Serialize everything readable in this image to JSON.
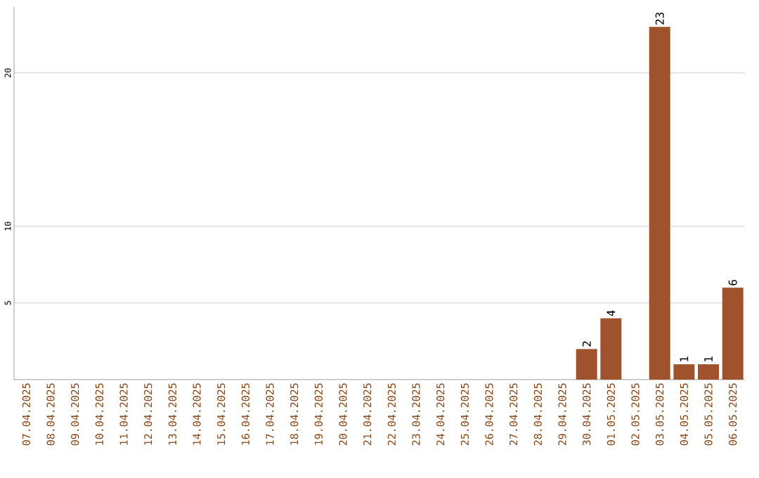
{
  "chart_data": {
    "type": "bar",
    "categories": [
      "07.04.2025",
      "08.04.2025",
      "09.04.2025",
      "10.04.2025",
      "11.04.2025",
      "12.04.2025",
      "13.04.2025",
      "14.04.2025",
      "15.04.2025",
      "16.04.2025",
      "17.04.2025",
      "18.04.2025",
      "19.04.2025",
      "20.04.2025",
      "21.04.2025",
      "22.04.2025",
      "23.04.2025",
      "24.04.2025",
      "25.04.2025",
      "26.04.2025",
      "27.04.2025",
      "28.04.2025",
      "29.04.2025",
      "30.04.2025",
      "01.05.2025",
      "02.05.2025",
      "03.05.2025",
      "04.05.2025",
      "05.05.2025",
      "06.05.2025"
    ],
    "values": [
      0,
      0,
      0,
      0,
      0,
      0,
      0,
      0,
      0,
      0,
      0,
      0,
      0,
      0,
      0,
      0,
      0,
      0,
      0,
      0,
      0,
      0,
      0,
      2,
      4,
      0,
      23,
      1,
      1,
      6
    ],
    "value_labels": [
      null,
      null,
      null,
      null,
      null,
      null,
      null,
      null,
      null,
      null,
      null,
      null,
      null,
      null,
      null,
      null,
      null,
      null,
      null,
      null,
      null,
      null,
      null,
      "2",
      "4",
      null,
      "23",
      "1",
      "1",
      "6"
    ],
    "color": "#a0522d",
    "ylim": [
      0,
      24.3
    ],
    "yticks": [
      5,
      10,
      20
    ],
    "grid": "y"
  }
}
